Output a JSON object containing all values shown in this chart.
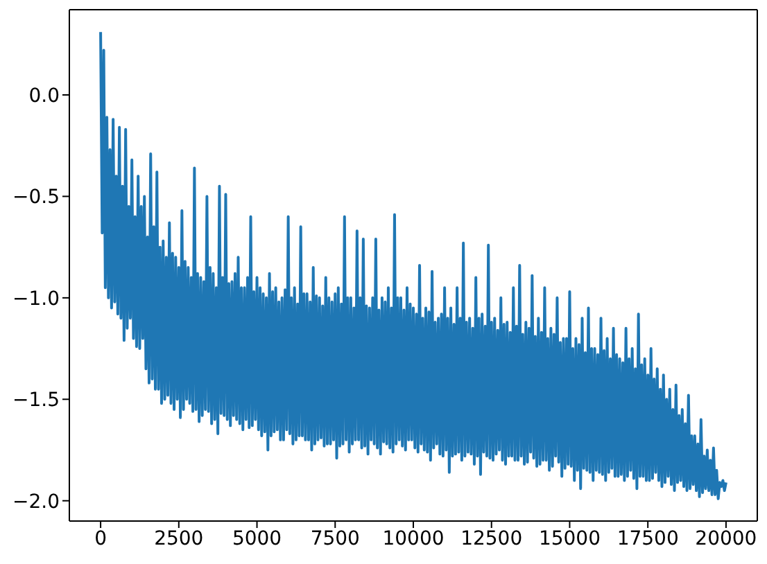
{
  "chart_data": {
    "type": "line",
    "marker": "none",
    "line_style": "solid",
    "x": [
      0,
      50,
      100,
      150,
      200,
      250,
      300,
      350,
      400,
      450,
      500,
      550,
      600,
      650,
      700,
      750,
      800,
      850,
      900,
      950,
      1000,
      1050,
      1100,
      1150,
      1200,
      1250,
      1300,
      1350,
      1400,
      1450,
      1500,
      1550,
      1600,
      1650,
      1700,
      1750,
      1800,
      1850,
      1900,
      1950,
      2000,
      2050,
      2100,
      2150,
      2200,
      2250,
      2300,
      2350,
      2400,
      2450,
      2500,
      2550,
      2600,
      2650,
      2700,
      2750,
      2800,
      2850,
      2900,
      2950,
      3000,
      3050,
      3100,
      3150,
      3200,
      3250,
      3300,
      3350,
      3400,
      3450,
      3500,
      3550,
      3600,
      3650,
      3700,
      3750,
      3800,
      3850,
      3900,
      3950,
      4000,
      4050,
      4100,
      4150,
      4200,
      4250,
      4300,
      4350,
      4400,
      4450,
      4500,
      4550,
      4600,
      4650,
      4700,
      4750,
      4800,
      4850,
      4900,
      4950,
      5000,
      5050,
      5100,
      5150,
      5200,
      5250,
      5300,
      5350,
      5400,
      5450,
      5500,
      5550,
      5600,
      5650,
      5700,
      5750,
      5800,
      5850,
      5900,
      5950,
      6000,
      6050,
      6100,
      6150,
      6200,
      6250,
      6300,
      6350,
      6400,
      6450,
      6500,
      6550,
      6600,
      6650,
      6700,
      6750,
      6800,
      6850,
      6900,
      6950,
      7000,
      7050,
      7100,
      7150,
      7200,
      7250,
      7300,
      7350,
      7400,
      7450,
      7500,
      7550,
      7600,
      7650,
      7700,
      7750,
      7800,
      7850,
      7900,
      7950,
      8000,
      8050,
      8100,
      8150,
      8200,
      8250,
      8300,
      8350,
      8400,
      8450,
      8500,
      8550,
      8600,
      8650,
      8700,
      8750,
      8800,
      8850,
      8900,
      8950,
      9000,
      9050,
      9100,
      9150,
      9200,
      9250,
      9300,
      9350,
      9400,
      9450,
      9500,
      9550,
      9600,
      9650,
      9700,
      9750,
      9800,
      9850,
      9900,
      9950,
      10000,
      10050,
      10100,
      10150,
      10200,
      10250,
      10300,
      10350,
      10400,
      10450,
      10500,
      10550,
      10600,
      10650,
      10700,
      10750,
      10800,
      10850,
      10900,
      10950,
      11000,
      11050,
      11100,
      11150,
      11200,
      11250,
      11300,
      11350,
      11400,
      11450,
      11500,
      11550,
      11600,
      11650,
      11700,
      11750,
      11800,
      11850,
      11900,
      11950,
      12000,
      12050,
      12100,
      12150,
      12200,
      12250,
      12300,
      12350,
      12400,
      12450,
      12500,
      12550,
      12600,
      12650,
      12700,
      12750,
      12800,
      12850,
      12900,
      12950,
      13000,
      13050,
      13100,
      13150,
      13200,
      13250,
      13300,
      13350,
      13400,
      13450,
      13500,
      13550,
      13600,
      13650,
      13700,
      13750,
      13800,
      13850,
      13900,
      13950,
      14000,
      14050,
      14100,
      14150,
      14200,
      14250,
      14300,
      14350,
      14400,
      14450,
      14500,
      14550,
      14600,
      14650,
      14700,
      14750,
      14800,
      14850,
      14900,
      14950,
      15000,
      15050,
      15100,
      15150,
      15200,
      15250,
      15300,
      15350,
      15400,
      15450,
      15500,
      15550,
      15600,
      15650,
      15700,
      15750,
      15800,
      15850,
      15900,
      15950,
      16000,
      16050,
      16100,
      16150,
      16200,
      16250,
      16300,
      16350,
      16400,
      16450,
      16500,
      16550,
      16600,
      16650,
      16700,
      16750,
      16800,
      16850,
      16900,
      16950,
      17000,
      17050,
      17100,
      17150,
      17200,
      17250,
      17300,
      17350,
      17400,
      17450,
      17500,
      17550,
      17600,
      17650,
      17700,
      17750,
      17800,
      17850,
      17900,
      17950,
      18000,
      18050,
      18100,
      18150,
      18200,
      18250,
      18300,
      18350,
      18400,
      18450,
      18500,
      18550,
      18600,
      18650,
      18700,
      18750,
      18800,
      18850,
      18900,
      18950,
      19000,
      19050,
      19100,
      19150,
      19200,
      19250,
      19300,
      19350,
      19400,
      19450,
      19500,
      19550,
      19600,
      19650,
      19700,
      19750,
      19800,
      19850,
      19900,
      19950,
      20000
    ],
    "series": [
      {
        "color": "#1f77b4",
        "values": [
          0.31,
          -0.68,
          0.22,
          -0.95,
          -0.11,
          -1.0,
          -0.27,
          -1.05,
          -0.12,
          -1.02,
          -0.4,
          -1.08,
          -0.16,
          -1.1,
          -0.45,
          -1.21,
          -0.17,
          -1.15,
          -0.55,
          -1.1,
          -0.32,
          -1.2,
          -0.6,
          -1.24,
          -0.4,
          -1.25,
          -0.55,
          -1.2,
          -0.5,
          -1.35,
          -0.7,
          -1.42,
          -0.29,
          -1.4,
          -0.65,
          -1.45,
          -0.38,
          -1.45,
          -0.75,
          -1.52,
          -0.72,
          -1.5,
          -0.8,
          -1.48,
          -0.63,
          -1.52,
          -0.78,
          -1.55,
          -0.8,
          -1.5,
          -0.85,
          -1.59,
          -0.57,
          -1.55,
          -0.82,
          -1.5,
          -0.85,
          -1.52,
          -0.9,
          -1.56,
          -0.36,
          -1.55,
          -0.88,
          -1.61,
          -0.9,
          -1.58,
          -0.92,
          -1.55,
          -0.5,
          -1.56,
          -0.85,
          -1.62,
          -0.88,
          -1.6,
          -0.95,
          -1.67,
          -0.45,
          -1.57,
          -0.9,
          -1.58,
          -0.49,
          -1.6,
          -0.93,
          -1.63,
          -0.92,
          -1.58,
          -0.88,
          -1.6,
          -0.8,
          -1.62,
          -0.95,
          -1.65,
          -0.95,
          -1.6,
          -0.9,
          -1.64,
          -0.6,
          -1.63,
          -0.97,
          -1.6,
          -0.9,
          -1.65,
          -0.95,
          -1.68,
          -0.98,
          -1.66,
          -1.0,
          -1.75,
          -0.88,
          -1.68,
          -0.97,
          -1.66,
          -0.95,
          -1.65,
          -1.02,
          -1.7,
          -1.0,
          -1.7,
          -0.96,
          -1.65,
          -0.6,
          -1.67,
          -1.0,
          -1.72,
          -0.95,
          -1.7,
          -1.03,
          -1.68,
          -0.65,
          -1.68,
          -0.98,
          -1.7,
          -0.98,
          -1.7,
          -1.02,
          -1.75,
          -0.85,
          -1.72,
          -0.99,
          -1.7,
          -1.0,
          -1.69,
          -1.04,
          -1.73,
          -0.9,
          -1.72,
          -1.0,
          -1.72,
          -1.02,
          -1.7,
          -0.98,
          -1.79,
          -0.95,
          -1.73,
          -1.03,
          -1.72,
          -0.6,
          -1.7,
          -1.0,
          -1.76,
          -1.0,
          -1.72,
          -1.05,
          -1.7,
          -0.67,
          -1.7,
          -1.0,
          -1.74,
          -0.71,
          -1.73,
          -1.04,
          -1.77,
          -1.05,
          -1.7,
          -1.0,
          -1.72,
          -0.71,
          -1.74,
          -1.06,
          -1.77,
          -1.0,
          -1.71,
          -1.02,
          -1.72,
          -0.95,
          -1.74,
          -1.05,
          -1.76,
          -0.59,
          -1.72,
          -1.0,
          -1.7,
          -1.0,
          -1.73,
          -1.06,
          -1.75,
          -0.95,
          -1.7,
          -1.03,
          -1.7,
          -1.05,
          -1.74,
          -1.08,
          -1.76,
          -0.84,
          -1.72,
          -1.1,
          -1.75,
          -1.05,
          -1.76,
          -1.07,
          -1.8,
          -0.87,
          -1.74,
          -1.12,
          -1.72,
          -1.1,
          -1.77,
          -1.08,
          -1.78,
          -0.95,
          -1.75,
          -1.1,
          -1.86,
          -1.05,
          -1.78,
          -1.13,
          -1.77,
          -0.95,
          -1.76,
          -1.1,
          -1.8,
          -0.73,
          -1.78,
          -1.12,
          -1.76,
          -1.1,
          -1.77,
          -1.15,
          -1.82,
          -0.9,
          -1.78,
          -1.1,
          -1.87,
          -1.08,
          -1.76,
          -1.14,
          -1.78,
          -0.74,
          -1.79,
          -1.12,
          -1.8,
          -1.1,
          -1.77,
          -1.16,
          -1.75,
          -1.0,
          -1.8,
          -1.13,
          -1.82,
          -1.12,
          -1.78,
          -1.17,
          -1.78,
          -0.95,
          -1.8,
          -1.14,
          -1.8,
          -0.84,
          -1.78,
          -1.18,
          -1.82,
          -1.12,
          -1.81,
          -1.15,
          -1.76,
          -0.89,
          -1.79,
          -1.19,
          -1.83,
          -1.1,
          -1.82,
          -1.17,
          -1.8,
          -0.95,
          -1.8,
          -1.2,
          -1.85,
          -1.15,
          -1.83,
          -1.18,
          -1.78,
          -1.0,
          -1.81,
          -1.22,
          -1.88,
          -1.2,
          -1.84,
          -1.2,
          -1.82,
          -0.97,
          -1.83,
          -1.25,
          -1.9,
          -1.2,
          -1.85,
          -1.23,
          -1.94,
          -1.1,
          -1.84,
          -1.27,
          -1.85,
          -1.05,
          -1.86,
          -1.25,
          -1.9,
          -1.25,
          -1.85,
          -1.28,
          -1.86,
          -1.1,
          -1.87,
          -1.26,
          -1.9,
          -1.2,
          -1.86,
          -1.3,
          -1.84,
          -1.15,
          -1.88,
          -1.28,
          -1.88,
          -1.3,
          -1.87,
          -1.32,
          -1.9,
          -1.15,
          -1.88,
          -1.3,
          -1.85,
          -1.25,
          -1.89,
          -1.35,
          -1.94,
          -1.08,
          -1.88,
          -1.33,
          -1.88,
          -1.3,
          -1.9,
          -1.38,
          -1.9,
          -1.25,
          -1.89,
          -1.4,
          -1.86,
          -1.35,
          -1.9,
          -1.45,
          -1.93,
          -1.38,
          -1.91,
          -1.5,
          -1.88,
          -1.45,
          -1.92,
          -1.55,
          -1.95,
          -1.43,
          -1.91,
          -1.58,
          -1.9,
          -1.55,
          -1.93,
          -1.62,
          -1.95,
          -1.48,
          -1.94,
          -1.68,
          -1.92,
          -1.68,
          -1.95,
          -1.72,
          -1.98,
          -1.6,
          -1.96,
          -1.78,
          -1.94,
          -1.75,
          -1.95,
          -1.8,
          -1.97,
          -1.74,
          -1.97,
          -1.85,
          -1.99,
          -1.91,
          -1.93,
          -1.9,
          -1.95,
          -1.91
        ]
      }
    ],
    "xlim": [
      -1000,
      21000
    ],
    "xticks": [
      0,
      2500,
      5000,
      7500,
      10000,
      12500,
      15000,
      17500,
      20000
    ],
    "ylim": [
      -2.1,
      0.42
    ],
    "yticks": [
      {
        "value": -2,
        "label": "−2.0"
      },
      {
        "value": -1.5,
        "label": "−1.5"
      },
      {
        "value": -1,
        "label": "−1.0"
      },
      {
        "value": -0.5,
        "label": "−0.5"
      },
      {
        "value": 0,
        "label": "0.0"
      }
    ]
  }
}
